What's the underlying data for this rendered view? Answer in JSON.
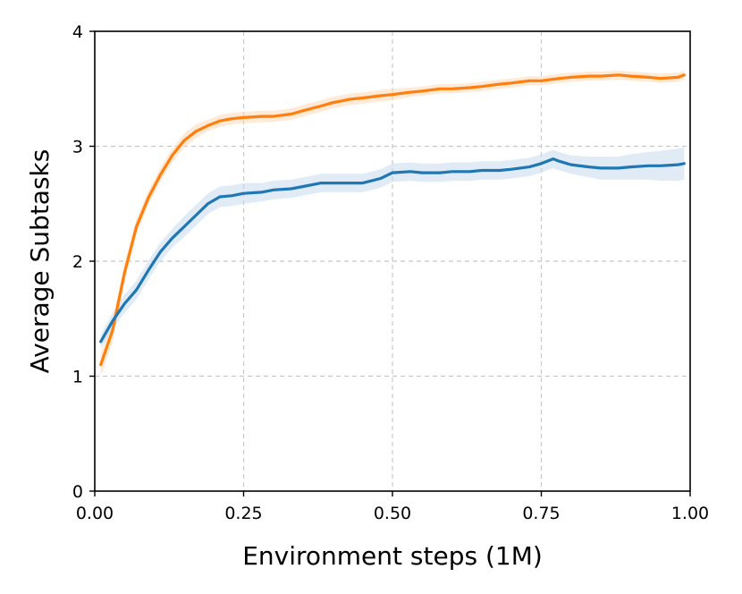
{
  "chart_data": {
    "type": "line",
    "title": "",
    "xlabel": "Environment steps (1M)",
    "ylabel": "Average Subtasks",
    "xlim": [
      0.0,
      1.0
    ],
    "ylim": [
      0,
      4
    ],
    "xticks": [
      0.0,
      0.25,
      0.5,
      0.75,
      1.0
    ],
    "xtick_labels": [
      "0.00",
      "0.25",
      "0.50",
      "0.75",
      "1.00"
    ],
    "yticks": [
      0,
      1,
      2,
      3,
      4
    ],
    "ytick_labels": [
      "0",
      "1",
      "2",
      "3",
      "4"
    ],
    "grid": true,
    "legend": "none",
    "series": [
      {
        "color": "#ff7f0e",
        "band_color": "#fdd9b5",
        "x": [
          0.01,
          0.03,
          0.05,
          0.07,
          0.09,
          0.11,
          0.13,
          0.15,
          0.17,
          0.19,
          0.21,
          0.23,
          0.25,
          0.28,
          0.3,
          0.33,
          0.35,
          0.38,
          0.4,
          0.43,
          0.45,
          0.48,
          0.5,
          0.53,
          0.55,
          0.58,
          0.6,
          0.63,
          0.65,
          0.68,
          0.7,
          0.73,
          0.75,
          0.78,
          0.8,
          0.83,
          0.85,
          0.88,
          0.9,
          0.93,
          0.95,
          0.98,
          0.99
        ],
        "y": [
          1.1,
          1.4,
          1.9,
          2.3,
          2.55,
          2.75,
          2.92,
          3.05,
          3.13,
          3.18,
          3.22,
          3.24,
          3.25,
          3.26,
          3.26,
          3.28,
          3.31,
          3.35,
          3.38,
          3.41,
          3.42,
          3.44,
          3.45,
          3.47,
          3.48,
          3.5,
          3.5,
          3.51,
          3.52,
          3.54,
          3.55,
          3.57,
          3.57,
          3.59,
          3.6,
          3.61,
          3.61,
          3.62,
          3.61,
          3.6,
          3.59,
          3.6,
          3.62
        ],
        "spread": [
          0.1,
          0.1,
          0.08,
          0.07,
          0.06,
          0.06,
          0.06,
          0.06,
          0.06,
          0.05,
          0.05,
          0.05,
          0.05,
          0.05,
          0.05,
          0.05,
          0.05,
          0.05,
          0.05,
          0.05,
          0.05,
          0.05,
          0.05,
          0.04,
          0.04,
          0.04,
          0.04,
          0.04,
          0.04,
          0.04,
          0.04,
          0.04,
          0.04,
          0.04,
          0.04,
          0.04,
          0.04,
          0.04,
          0.04,
          0.04,
          0.04,
          0.04,
          0.04
        ]
      },
      {
        "color": "#1f77b4",
        "band_color": "#c6dbef",
        "x": [
          0.01,
          0.03,
          0.05,
          0.07,
          0.09,
          0.11,
          0.13,
          0.15,
          0.17,
          0.19,
          0.21,
          0.23,
          0.25,
          0.28,
          0.3,
          0.33,
          0.35,
          0.38,
          0.4,
          0.43,
          0.45,
          0.48,
          0.5,
          0.53,
          0.55,
          0.58,
          0.6,
          0.63,
          0.65,
          0.68,
          0.7,
          0.73,
          0.75,
          0.77,
          0.78,
          0.8,
          0.83,
          0.85,
          0.88,
          0.9,
          0.93,
          0.95,
          0.98,
          0.99
        ],
        "y": [
          1.3,
          1.48,
          1.63,
          1.75,
          1.92,
          2.08,
          2.2,
          2.3,
          2.4,
          2.5,
          2.56,
          2.57,
          2.59,
          2.6,
          2.62,
          2.63,
          2.65,
          2.68,
          2.68,
          2.68,
          2.68,
          2.72,
          2.77,
          2.78,
          2.77,
          2.77,
          2.78,
          2.78,
          2.79,
          2.79,
          2.8,
          2.82,
          2.85,
          2.89,
          2.87,
          2.84,
          2.82,
          2.81,
          2.81,
          2.82,
          2.83,
          2.83,
          2.84,
          2.85
        ],
        "spread": [
          0.06,
          0.07,
          0.08,
          0.08,
          0.08,
          0.08,
          0.08,
          0.09,
          0.09,
          0.09,
          0.09,
          0.09,
          0.09,
          0.08,
          0.08,
          0.08,
          0.08,
          0.08,
          0.08,
          0.08,
          0.08,
          0.08,
          0.08,
          0.08,
          0.08,
          0.08,
          0.08,
          0.08,
          0.08,
          0.08,
          0.08,
          0.08,
          0.08,
          0.08,
          0.08,
          0.08,
          0.09,
          0.1,
          0.1,
          0.11,
          0.12,
          0.13,
          0.14,
          0.14
        ]
      }
    ]
  }
}
